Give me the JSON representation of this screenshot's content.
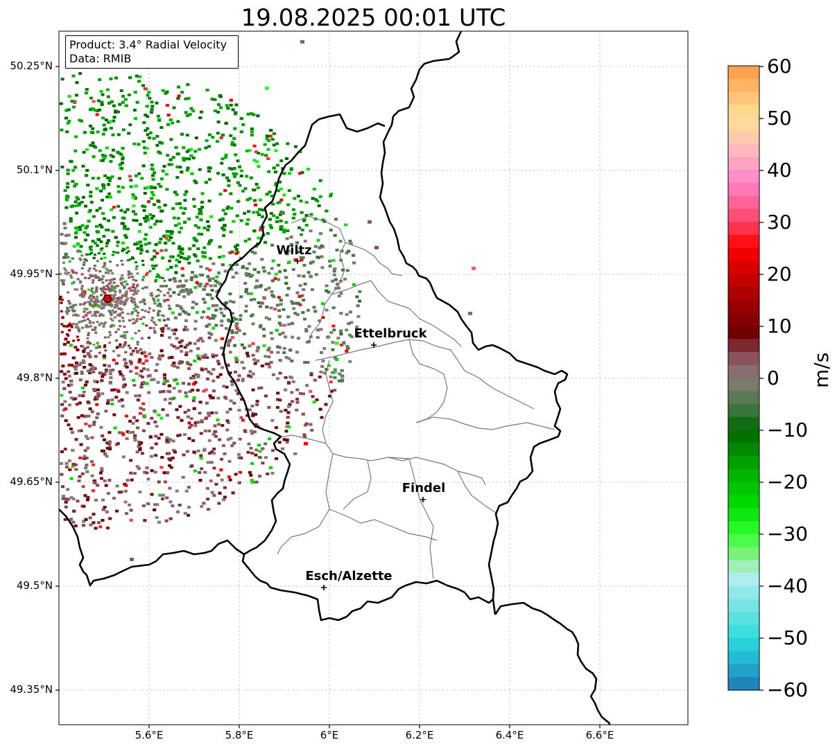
{
  "title": "19.08.2025 00:01 UTC",
  "info": {
    "product": "Product: 3.4° Radial Velocity",
    "data": "Data: RMIB"
  },
  "lat_ticks": [
    "50.25°N",
    "50.1°N",
    "49.95°N",
    "49.8°N",
    "49.65°N",
    "49.5°N",
    "49.35°N"
  ],
  "lon_ticks": [
    "5.6°E",
    "5.8°E",
    "6°E",
    "6.2°E",
    "6.4°E",
    "6.6°E"
  ],
  "cities": [
    {
      "name": "Wiltz"
    },
    {
      "name": "Ettelbruck"
    },
    {
      "name": "Findel"
    },
    {
      "name": "Esch/Alzette"
    }
  ],
  "colorbar": {
    "unit": "m/s",
    "ticks": [
      "60",
      "50",
      "40",
      "30",
      "20",
      "10",
      "0",
      "−10",
      "−20",
      "−30",
      "−40",
      "−50",
      "−60"
    ],
    "range": [
      -60,
      60
    ]
  },
  "colors": {
    "radar_site": "#dd0000",
    "border": "#000000",
    "canton": "#777777",
    "grid": "#bbbbbb"
  }
}
